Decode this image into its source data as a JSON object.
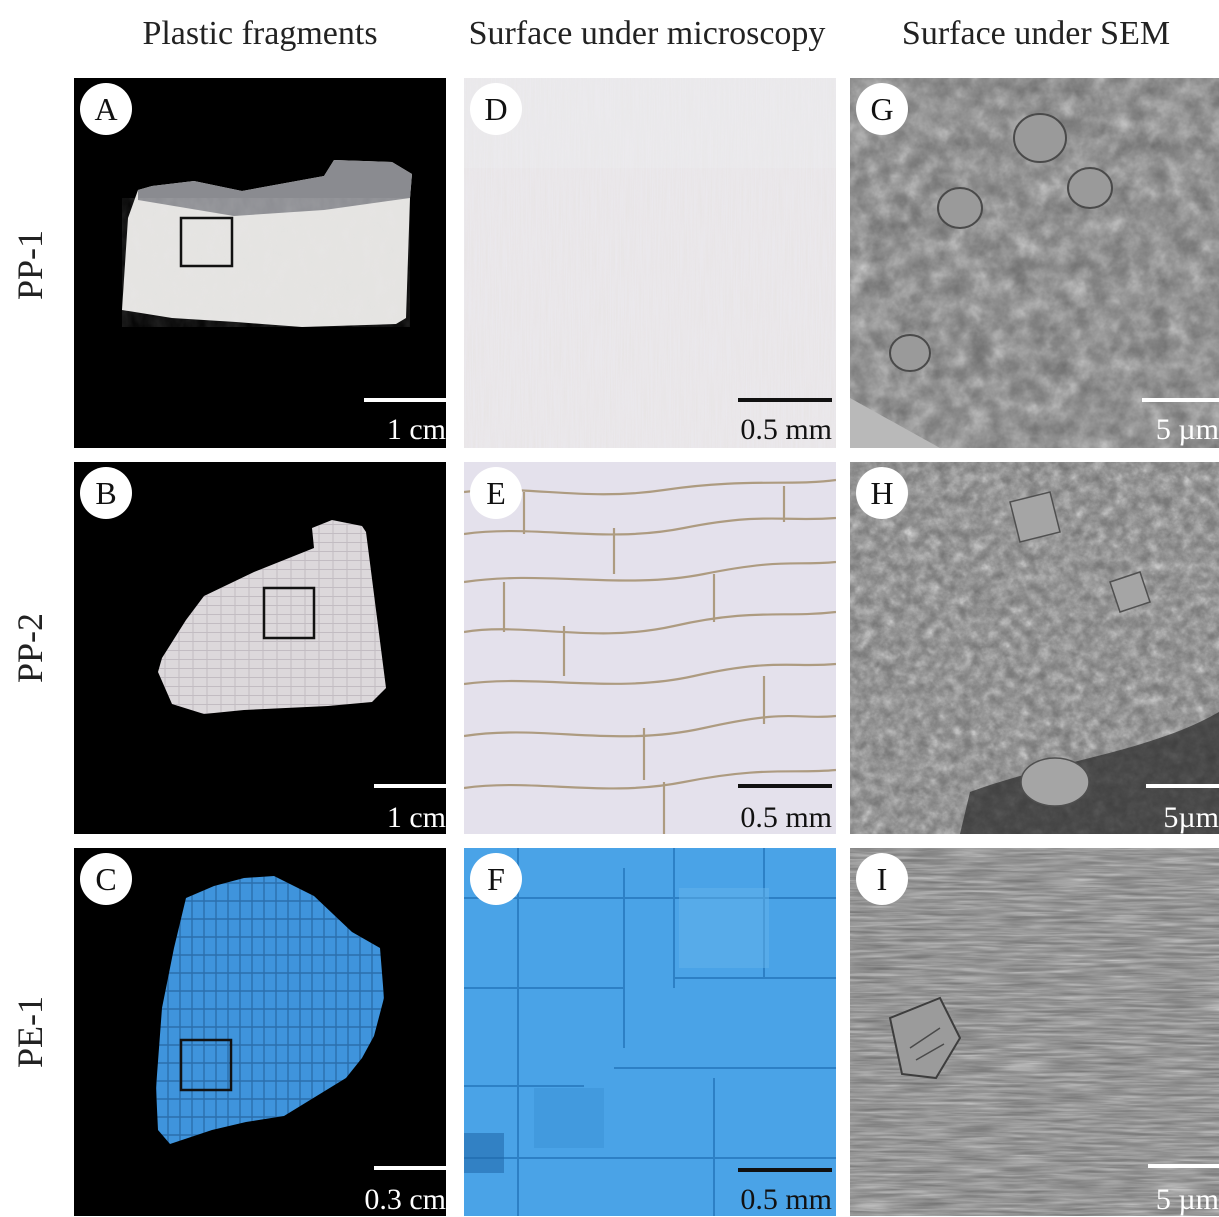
{
  "columns": [
    {
      "label": "Plastic fragments"
    },
    {
      "label": "Surface under microscopy"
    },
    {
      "label": "Surface under SEM"
    }
  ],
  "rows": [
    {
      "label": "PP-1"
    },
    {
      "label": "PP-2"
    },
    {
      "label": "PE-1"
    }
  ],
  "panels": {
    "A": {
      "letter": "A",
      "scale_bar": "1 cm",
      "sample_color": "#e6e4e2"
    },
    "B": {
      "letter": "B",
      "scale_bar": "1 cm",
      "sample_color": "#d9d5d9"
    },
    "C": {
      "letter": "C",
      "scale_bar": "0.3 cm",
      "sample_color": "#3b8fd6"
    },
    "D": {
      "letter": "D",
      "scale_bar": "0.5 mm",
      "surface_color": "#e7e5ea"
    },
    "E": {
      "letter": "E",
      "scale_bar": "0.5 mm",
      "surface_color": "#e3e0ea"
    },
    "F": {
      "letter": "F",
      "scale_bar": "0.5 mm",
      "surface_color": "#4aa3e6"
    },
    "G": {
      "letter": "G",
      "scale_bar": "5 µm"
    },
    "H": {
      "letter": "H",
      "scale_bar": "5µm"
    },
    "I": {
      "letter": "I",
      "scale_bar": "5 µm"
    }
  }
}
